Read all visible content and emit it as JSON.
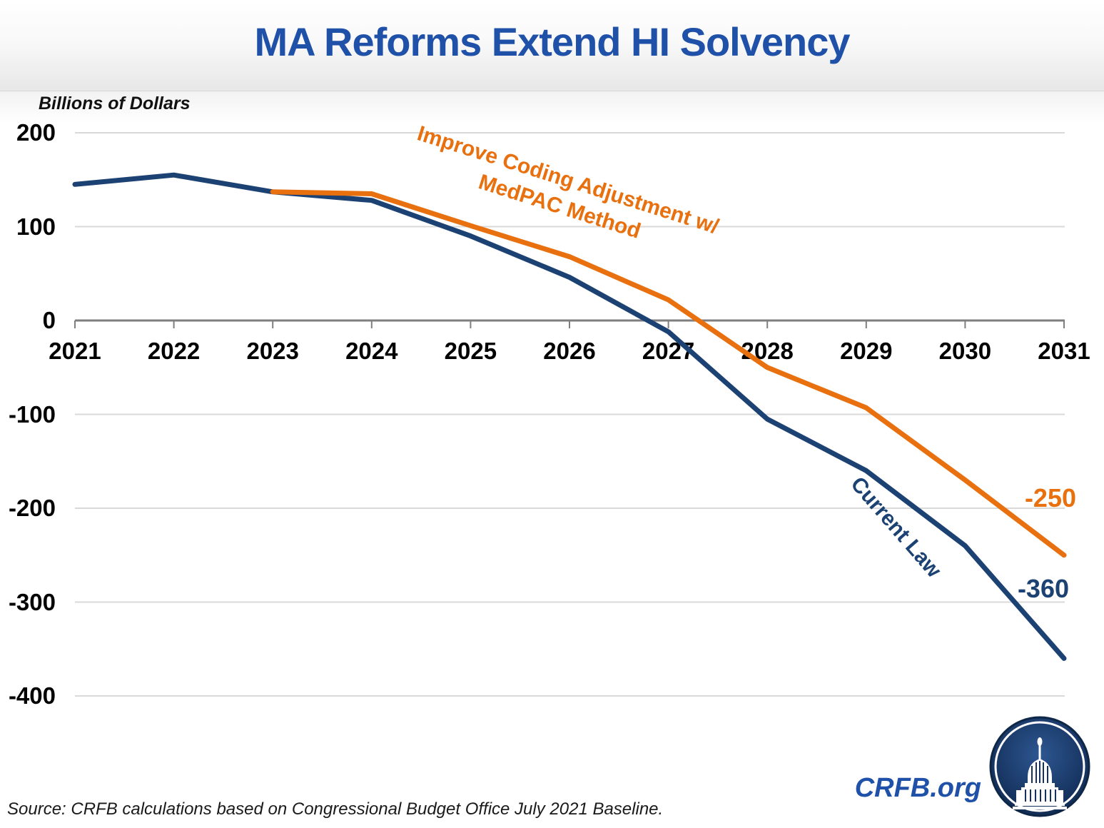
{
  "title": "MA Reforms Extend HI Solvency",
  "y_axis_title": "Billions of Dollars",
  "source_note": "Source: CRFB calculations based on Congressional Budget Office July 2021 Baseline.",
  "branding": {
    "site_label": "CRFB.org",
    "logo_name": "capitol-dome-logo"
  },
  "colors": {
    "title_blue": "#1F51A8",
    "navy": "#1C4273",
    "orange": "#E8700F",
    "axis_gray": "#7F7F7F",
    "grid_gray": "#D9D9D9",
    "text_black": "#1A1A1A",
    "logo_navy": "#16335F"
  },
  "chart_data": {
    "type": "line",
    "x": [
      2021,
      2022,
      2023,
      2024,
      2025,
      2026,
      2027,
      2028,
      2029,
      2030,
      2031
    ],
    "xticks": [
      2021,
      2022,
      2023,
      2024,
      2025,
      2026,
      2027,
      2028,
      2029,
      2030,
      2031
    ],
    "yticks": [
      200,
      100,
      0,
      -100,
      -200,
      -300,
      -400
    ],
    "xlim": [
      2021,
      2031
    ],
    "ylim": [
      -400,
      200
    ],
    "ylabel": "Billions of Dollars",
    "xlabel": "",
    "grid": "horizontal gridlines, zero axis emphasized with tick marks",
    "legend_position": "inline labels on lines",
    "series": [
      {
        "name": "Current Law",
        "label": "Current Law",
        "color_key": "navy",
        "start_year": 2021,
        "values": [
          145,
          155,
          137,
          128,
          90,
          46,
          -12,
          -105,
          -160,
          -240,
          -360
        ],
        "end_label": "-360"
      },
      {
        "name": "Improve Coding Adjustment w/ MedPAC Method",
        "label_line1": "Improve Coding Adjustment w/",
        "label_line2": "MedPAC Method",
        "color_key": "orange",
        "start_year": 2023,
        "values": [
          137,
          135,
          101,
          68,
          22,
          -50,
          -93,
          -170,
          -250
        ],
        "end_label": "-250"
      }
    ]
  }
}
